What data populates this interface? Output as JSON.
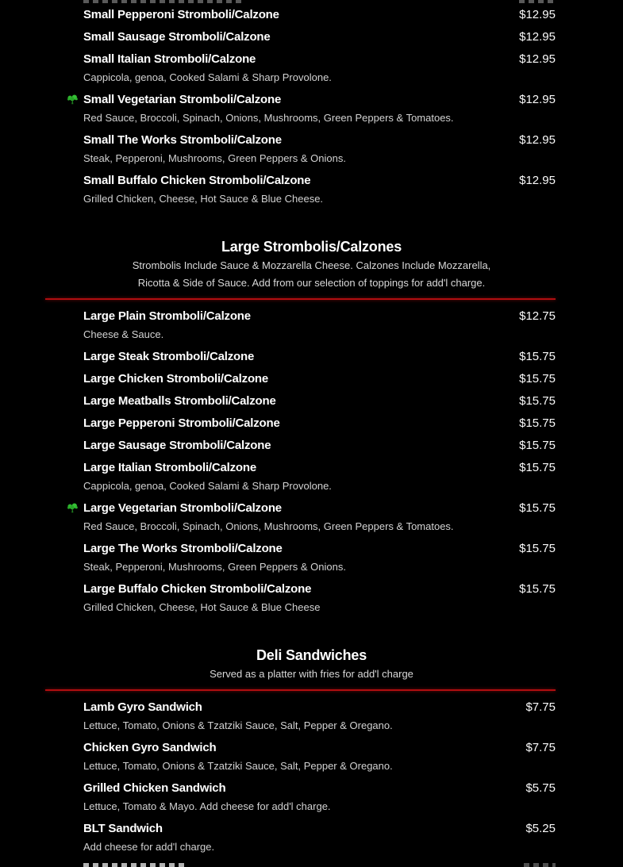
{
  "theme": {
    "background": "#000000",
    "item_title_color": "#ffffff",
    "price_color": "#fafafa",
    "description_color": "#d2d2d2",
    "section_subtitle_color": "#d8d8d8",
    "divider_color": "#b00e10",
    "vegetarian_icon": "broccoli-icon",
    "vegetarian_icon_color": "#2eb42e"
  },
  "clipped_rows": {
    "top": "bottom edge of previous menu item row cut off by top of screenshot (illegible)",
    "bottom": "top edge of next menu item row cut off by bottom of screenshot (illegible)"
  },
  "sections": [
    {
      "id": "small-strombolis-calzones-continued",
      "title": "",
      "subtitle_lines": [],
      "items": [
        {
          "name": "Small Pepperoni Stromboli/Calzone",
          "price": "$12.95"
        },
        {
          "name": "Small Sausage Stromboli/Calzone",
          "price": "$12.95"
        },
        {
          "name": "Small Italian Stromboli/Calzone",
          "price": "$12.95",
          "description": "Cappicola, genoa, Cooked Salami & Sharp Provolone."
        },
        {
          "name": "Small Vegetarian Stromboli/Calzone",
          "price": "$12.95",
          "vegetarian": true,
          "description": "Red Sauce, Broccoli, Spinach, Onions, Mushrooms, Green Peppers & Tomatoes."
        },
        {
          "name": "Small The Works Stromboli/Calzone",
          "price": "$12.95",
          "description": "Steak, Pepperoni, Mushrooms, Green Peppers & Onions."
        },
        {
          "name": "Small Buffalo Chicken Stromboli/Calzone",
          "price": "$12.95",
          "description": "Grilled Chicken, Cheese, Hot Sauce & Blue Cheese."
        }
      ]
    },
    {
      "id": "large-strombolis-calzones",
      "title": "Large Strombolis/Calzones",
      "subtitle_lines": [
        "Strombolis Include Sauce & Mozzarella Cheese. Calzones Include Mozzarella,",
        "Ricotta & Side of Sauce. Add from our selection of toppings for add'l charge."
      ],
      "items": [
        {
          "name": "Large Plain Stromboli/Calzone",
          "price": "$12.75",
          "description": "Cheese & Sauce."
        },
        {
          "name": "Large Steak Stromboli/Calzone",
          "price": "$15.75"
        },
        {
          "name": "Large Chicken Stromboli/Calzone",
          "price": "$15.75"
        },
        {
          "name": "Large Meatballs Stromboli/Calzone",
          "price": "$15.75"
        },
        {
          "name": "Large Pepperoni Stromboli/Calzone",
          "price": "$15.75"
        },
        {
          "name": "Large Sausage Stromboli/Calzone",
          "price": "$15.75"
        },
        {
          "name": "Large Italian Stromboli/Calzone",
          "price": "$15.75",
          "description": "Cappicola, genoa, Cooked Salami & Sharp Provolone."
        },
        {
          "name": "Large Vegetarian Stromboli/Calzone",
          "price": "$15.75",
          "vegetarian": true,
          "description": "Red Sauce, Broccoli, Spinach, Onions, Mushrooms, Green Peppers & Tomatoes."
        },
        {
          "name": "Large The Works Stromboli/Calzone",
          "price": "$15.75",
          "description": "Steak, Pepperoni, Mushrooms, Green Peppers & Onions."
        },
        {
          "name": "Large Buffalo Chicken Stromboli/Calzone",
          "price": "$15.75",
          "description": "Grilled Chicken, Cheese, Hot Sauce & Blue Cheese"
        }
      ]
    },
    {
      "id": "deli-sandwiches",
      "title": "Deli Sandwiches",
      "subtitle_lines": [
        "Served as a platter with fries for add'l charge"
      ],
      "items": [
        {
          "name": "Lamb Gyro Sandwich",
          "price": "$7.75",
          "description": "Lettuce, Tomato, Onions & Tzatziki Sauce, Salt, Pepper & Oregano."
        },
        {
          "name": "Chicken Gyro Sandwich",
          "price": "$7.75",
          "description": "Lettuce, Tomato, Onions & Tzatziki Sauce, Salt, Pepper & Oregano."
        },
        {
          "name": "Grilled Chicken Sandwich",
          "price": "$5.75",
          "description": "Lettuce, Tomato & Mayo. Add cheese for add'l charge."
        },
        {
          "name": "BLT Sandwich",
          "price": "$5.25",
          "description": "Add cheese for add'l charge."
        }
      ]
    }
  ]
}
